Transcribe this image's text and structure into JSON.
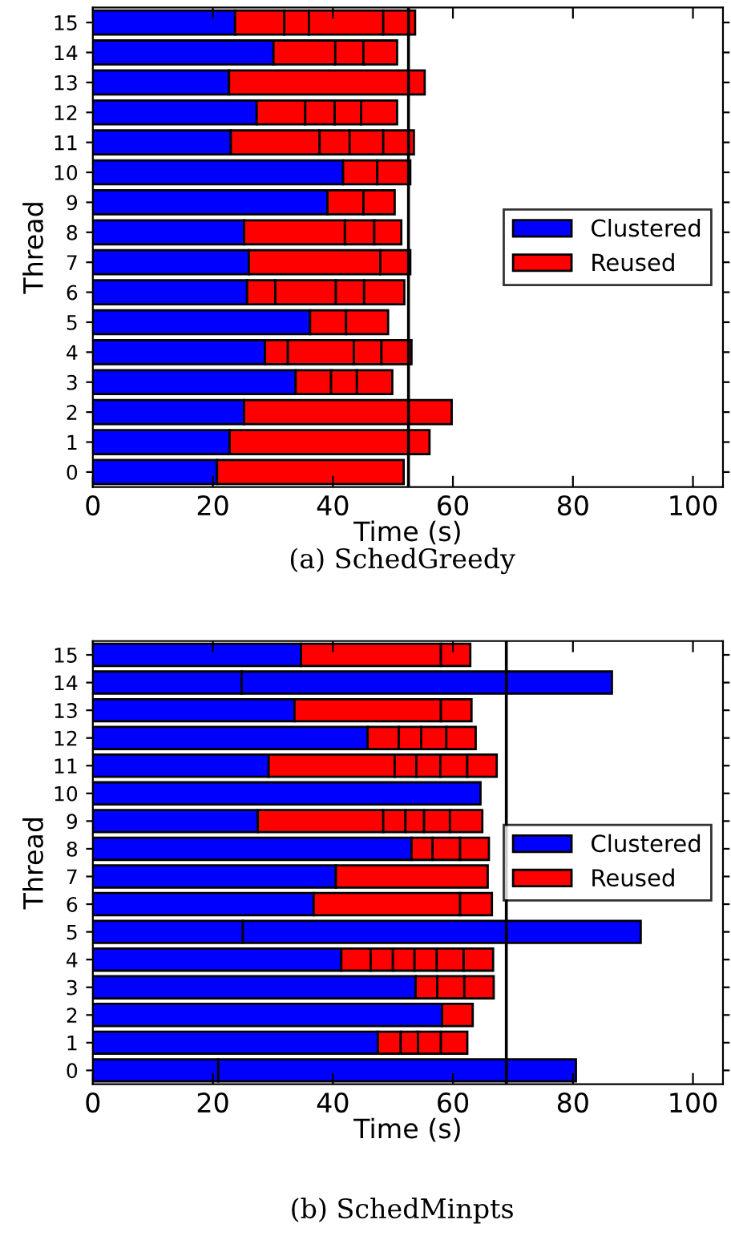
{
  "chart_data": [
    {
      "type": "bar",
      "orientation": "horizontal",
      "stacked": true,
      "title": "(a) SchedGreedy",
      "xlabel": "Time (s)",
      "ylabel": "Thread",
      "categories": [
        "15",
        "14",
        "13",
        "12",
        "11",
        "10",
        "9",
        "8",
        "7",
        "6",
        "5",
        "4",
        "3",
        "2",
        "1",
        "0"
      ],
      "series": [
        {
          "name": "Clustered",
          "color": "#0000ff",
          "values": [
            23.7,
            30.1,
            22.7,
            27.3,
            23.0,
            41.7,
            39.1,
            25.2,
            26.0,
            25.7,
            36.2,
            28.7,
            33.8,
            25.2,
            22.8,
            20.7
          ]
        },
        {
          "name": "Reused",
          "color": "#ff0000",
          "values": [
            8.2,
            10.3,
            32.6,
            8.1,
            14.8,
            5.7,
            6.0,
            16.8,
            21.9,
            4.7,
            6.0,
            3.8,
            5.9,
            34.6,
            33.3,
            31.1
          ]
        },
        {
          "color": "#ff0000",
          "values": [
            4.1,
            4.7,
            null,
            4.9,
            5.0,
            5.5,
            5.2,
            4.9,
            5.0,
            10.1,
            7.0,
            11.0,
            4.3,
            null,
            null,
            null
          ]
        },
        {
          "color": "#ff0000",
          "values": [
            12.4,
            5.6,
            null,
            4.4,
            5.6,
            null,
            null,
            4.5,
            null,
            4.7,
            null,
            4.6,
            5.9,
            null,
            null,
            null
          ]
        },
        {
          "color": "#ff0000",
          "values": [
            5.3,
            null,
            null,
            6.0,
            5.1,
            null,
            null,
            null,
            null,
            6.7,
            null,
            5.0,
            null,
            null,
            null,
            null
          ]
        }
      ],
      "xlim": [
        0,
        105
      ],
      "xticks": [
        0,
        20,
        40,
        60,
        80,
        100
      ],
      "ref_lines": [
        {
          "axis": "x",
          "value": 52.6,
          "color": "#000000"
        }
      ],
      "legend": "right"
    },
    {
      "type": "bar",
      "orientation": "horizontal",
      "stacked": true,
      "title": "(b) SchedMinpts",
      "xlabel": "Time (s)",
      "ylabel": "Thread",
      "categories": [
        "15",
        "14",
        "13",
        "12",
        "11",
        "10",
        "9",
        "8",
        "7",
        "6",
        "5",
        "4",
        "3",
        "2",
        "1",
        "0"
      ],
      "series": [
        {
          "name": "Clustered",
          "color": "#0000ff",
          "values": [
            34.7,
            24.8,
            33.6,
            45.8,
            29.3,
            64.6,
            27.5,
            53.1,
            40.5,
            36.8,
            25.0,
            41.4,
            53.8,
            58.2,
            47.5,
            20.9
          ]
        },
        {
          "color": "#0000ff",
          "values": [
            null,
            61.7,
            null,
            null,
            null,
            null,
            null,
            null,
            null,
            null,
            66.3,
            null,
            null,
            null,
            null,
            59.6
          ]
        },
        {
          "name": "Reused",
          "color": "#ff0000",
          "values": [
            23.3,
            null,
            24.4,
            5.2,
            21.0,
            null,
            20.9,
            3.5,
            25.3,
            24.4,
            null,
            4.9,
            3.6,
            5.1,
            3.8,
            null
          ]
        },
        {
          "color": "#ff0000",
          "values": [
            4.9,
            null,
            5.1,
            3.7,
            3.6,
            null,
            3.7,
            4.6,
            null,
            5.3,
            null,
            3.7,
            4.5,
            null,
            2.9,
            null
          ]
        },
        {
          "color": "#ff0000",
          "values": [
            null,
            null,
            null,
            4.2,
            4.0,
            null,
            3.1,
            4.8,
            null,
            null,
            null,
            3.6,
            4.9,
            null,
            3.8,
            null
          ]
        },
        {
          "color": "#ff0000",
          "values": [
            null,
            null,
            null,
            4.9,
            4.5,
            null,
            4.3,
            null,
            null,
            null,
            null,
            3.7,
            null,
            null,
            4.4,
            null
          ]
        },
        {
          "color": "#ff0000",
          "values": [
            null,
            null,
            null,
            null,
            4.9,
            null,
            5.4,
            null,
            null,
            null,
            null,
            4.5,
            null,
            null,
            null,
            null
          ]
        },
        {
          "color": "#ff0000",
          "values": [
            null,
            null,
            null,
            null,
            null,
            null,
            null,
            null,
            null,
            null,
            null,
            4.9,
            null,
            null,
            null,
            null
          ]
        }
      ],
      "xlim": [
        0,
        105
      ],
      "xticks": [
        0,
        20,
        40,
        60,
        80,
        100
      ],
      "ref_lines": [
        {
          "axis": "x",
          "value": 68.9,
          "color": "#000000"
        }
      ],
      "legend": "right"
    }
  ]
}
